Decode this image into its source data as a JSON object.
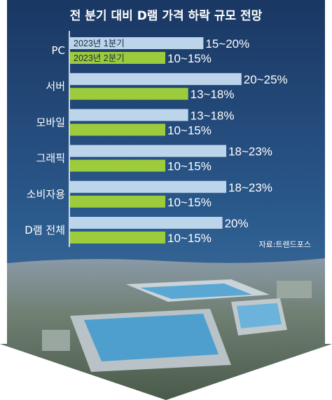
{
  "chart_data": {
    "type": "bar",
    "orientation": "horizontal",
    "title": "전 분기 대비 D램 가격 하락 규모 전망",
    "source": "자료:트렌드포스",
    "categories": [
      "PC",
      "서버",
      "모바일",
      "그래픽",
      "소비자용",
      "D램 전체"
    ],
    "series": [
      {
        "name": "2023년 1분기",
        "color": "#bcd5ea",
        "labels": [
          "15~20%",
          "20~25%",
          "13~18%",
          "18~23%",
          "18~23%",
          "20%"
        ],
        "values": [
          17.5,
          22.5,
          15.5,
          20.5,
          20.5,
          20
        ]
      },
      {
        "name": "2023년 2분기",
        "color": "#9ccb3b",
        "labels": [
          "10~15%",
          "13~18%",
          "10~15%",
          "10~15%",
          "10~15%",
          "10~15%"
        ],
        "values": [
          12.5,
          15.5,
          12.5,
          12.5,
          12.5,
          12.5
        ]
      }
    ],
    "xlim": [
      0,
      25
    ],
    "legend_position": "top-left",
    "grid": false
  },
  "colors": {
    "background_top": "#1c3a66",
    "background_bottom": "#2d5c8e",
    "axis": "#ffffff"
  }
}
